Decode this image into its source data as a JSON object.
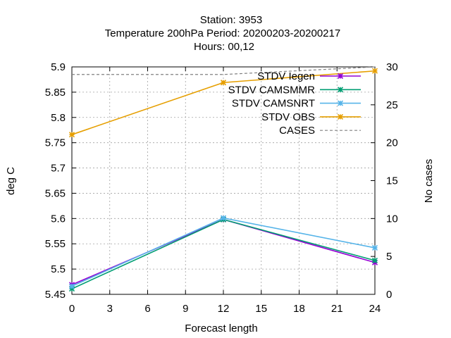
{
  "title": {
    "line1": "Station:     3953",
    "line2": "Temperature 200hPa   Period: 20200203-20200217",
    "line3": "Hours:  00,12"
  },
  "chart_data": {
    "type": "line",
    "xlabel": "Forecast length",
    "ylabel": "deg C",
    "y2label": "No cases",
    "xlim": [
      0,
      24
    ],
    "ylim": [
      5.45,
      5.9
    ],
    "y2lim": [
      0,
      30
    ],
    "xticks": [
      0,
      3,
      6,
      9,
      12,
      15,
      18,
      21,
      24
    ],
    "yticks": [
      5.45,
      5.5,
      5.55,
      5.6,
      5.65,
      5.7,
      5.75,
      5.8,
      5.85,
      5.9
    ],
    "y2ticks": [
      0,
      5,
      10,
      15,
      20,
      25,
      30
    ],
    "grid": true,
    "legend_position": "top-right",
    "series": [
      {
        "name": "STDV Iegen",
        "axis": "y",
        "color": "#9400d3",
        "style": "solid",
        "marker": "x",
        "x": [
          0,
          12,
          24
        ],
        "values": [
          5.469,
          5.598,
          5.513
        ]
      },
      {
        "name": "STDV CAMSMMR",
        "axis": "y",
        "color": "#009e73",
        "style": "solid",
        "marker": "x",
        "x": [
          0,
          12,
          24
        ],
        "values": [
          5.461,
          5.598,
          5.517
        ]
      },
      {
        "name": "STDV CAMSNRT",
        "axis": "y",
        "color": "#56b4e9",
        "style": "solid",
        "marker": "x",
        "x": [
          0,
          12,
          24
        ],
        "values": [
          5.466,
          5.601,
          5.542
        ]
      },
      {
        "name": "STDV OBS",
        "axis": "y",
        "color": "#e69f00",
        "style": "solid",
        "marker": "x",
        "x": [
          0,
          12,
          24
        ],
        "values": [
          5.766,
          5.869,
          5.892
        ]
      },
      {
        "name": "CASES",
        "axis": "y2",
        "color": "#808080",
        "style": "dashed",
        "marker": "none",
        "x": [
          0,
          12,
          24
        ],
        "values": [
          29,
          29,
          30
        ]
      }
    ]
  }
}
